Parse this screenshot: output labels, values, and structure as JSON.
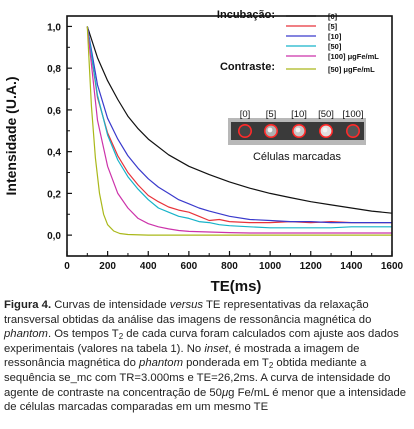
{
  "chart_data": {
    "type": "line",
    "xlabel": "TE(ms)",
    "ylabel": "Intensidade (U.A.)",
    "xlim": [
      0,
      1600
    ],
    "ylim": [
      -0.1,
      1.05
    ],
    "xticks": [
      "0",
      "200",
      "400",
      "600",
      "800",
      "1000",
      "1200",
      "1400",
      "1600"
    ],
    "yticks": [
      "0,0",
      "0,2",
      "0,4",
      "0,6",
      "0,8",
      "1,0"
    ],
    "grid": false,
    "legend_placement": "top-right",
    "legend": {
      "group1_title": "Incubação:",
      "group2_title": "Contraste:",
      "entries": [
        "[0]",
        "[5]",
        "[10]",
        "[50]",
        "[100] μgFe/mL",
        "[50] μgFe/mL"
      ]
    },
    "inset": {
      "labels": [
        "[0]",
        "[5]",
        "[10]",
        "[50]",
        "[100]"
      ],
      "caption": "Células marcadas"
    },
    "series": [
      {
        "name": "[0]",
        "color": "#111111",
        "x": [
          100,
          150,
          200,
          250,
          300,
          350,
          400,
          500,
          600,
          700,
          800,
          900,
          1000,
          1100,
          1200,
          1300,
          1400,
          1500,
          1600
        ],
        "y": [
          1.0,
          0.85,
          0.74,
          0.65,
          0.57,
          0.51,
          0.46,
          0.385,
          0.33,
          0.29,
          0.255,
          0.225,
          0.2,
          0.18,
          0.16,
          0.145,
          0.13,
          0.115,
          0.105
        ]
      },
      {
        "name": "[5]",
        "color": "#e8333a",
        "x": [
          100,
          150,
          200,
          250,
          300,
          350,
          400,
          450,
          500,
          550,
          600,
          650,
          700,
          750,
          800,
          900,
          1000,
          1100,
          1200,
          1300,
          1400,
          1500,
          1600
        ],
        "y": [
          1.0,
          0.66,
          0.49,
          0.38,
          0.3,
          0.24,
          0.19,
          0.16,
          0.135,
          0.12,
          0.11,
          0.09,
          0.07,
          0.075,
          0.065,
          0.06,
          0.06,
          0.065,
          0.06,
          0.065,
          0.06,
          0.06,
          0.06
        ]
      },
      {
        "name": "[10]",
        "color": "#3a3acc",
        "x": [
          100,
          150,
          200,
          250,
          300,
          350,
          400,
          450,
          500,
          550,
          600,
          650,
          700,
          800,
          900,
          1000,
          1100,
          1200,
          1300,
          1400,
          1500,
          1600
        ],
        "y": [
          1.0,
          0.72,
          0.56,
          0.46,
          0.38,
          0.32,
          0.27,
          0.23,
          0.2,
          0.17,
          0.15,
          0.13,
          0.115,
          0.09,
          0.075,
          0.07,
          0.065,
          0.065,
          0.06,
          0.06,
          0.06,
          0.06
        ]
      },
      {
        "name": "[50]",
        "color": "#17b3c9",
        "x": [
          100,
          150,
          200,
          250,
          300,
          350,
          400,
          450,
          500,
          550,
          600,
          650,
          700,
          750,
          800,
          900,
          1000,
          1100,
          1200,
          1300,
          1400,
          1500,
          1600
        ],
        "y": [
          1.0,
          0.67,
          0.48,
          0.36,
          0.28,
          0.22,
          0.17,
          0.13,
          0.11,
          0.09,
          0.08,
          0.065,
          0.06,
          0.05,
          0.045,
          0.04,
          0.035,
          0.035,
          0.035,
          0.035,
          0.04,
          0.04,
          0.04
        ]
      },
      {
        "name": "[100] μgFe/mL",
        "color": "#cc33aa",
        "x": [
          100,
          150,
          200,
          250,
          300,
          350,
          400,
          450,
          500,
          550,
          600,
          700,
          800,
          900,
          1000,
          1200,
          1400,
          1600
        ],
        "y": [
          1.0,
          0.55,
          0.33,
          0.2,
          0.13,
          0.08,
          0.055,
          0.04,
          0.03,
          0.022,
          0.018,
          0.015,
          0.012,
          0.01,
          0.01,
          0.01,
          0.01,
          0.01
        ]
      },
      {
        "name": "[50] μgFe/mL",
        "color": "#aab81a",
        "x": [
          100,
          120,
          140,
          160,
          180,
          200,
          230,
          260,
          300,
          400,
          500,
          700,
          1000,
          1300,
          1600
        ],
        "y": [
          1.0,
          0.62,
          0.37,
          0.2,
          0.1,
          0.05,
          0.02,
          0.008,
          0.003,
          0.0,
          0.0,
          0.0,
          0.0,
          0.0,
          0.0
        ]
      }
    ]
  },
  "caption": {
    "label": "Figura 4.",
    "p1": " Curvas de intensidade ",
    "e1": "versus",
    "p2": " TE representativas da relaxação transversal obtidas da análise das imagens de ressonância magnética do ",
    "e2": "phantom",
    "p3": ". Os tempos T",
    "s1": "2",
    "p4": " de cada curva foram calculados com ajuste aos dados experimentais (valores na tabela 1). No ",
    "e3": "inset",
    "p5": ", é mostrada a imagem de ressonância magnética do ",
    "e4": "phantom",
    "p6": " ponderada em T",
    "s2": "2",
    "p7": " obtida mediante a sequência se_mc com TR=3.000ms e TE=26,2ms. A curva de intensidade do agente de contraste na concentração de 50",
    "e5": "μ",
    "p8": "g Fe/mL é menor que a intensidade de células marcadas comparadas em um mesmo TE"
  }
}
